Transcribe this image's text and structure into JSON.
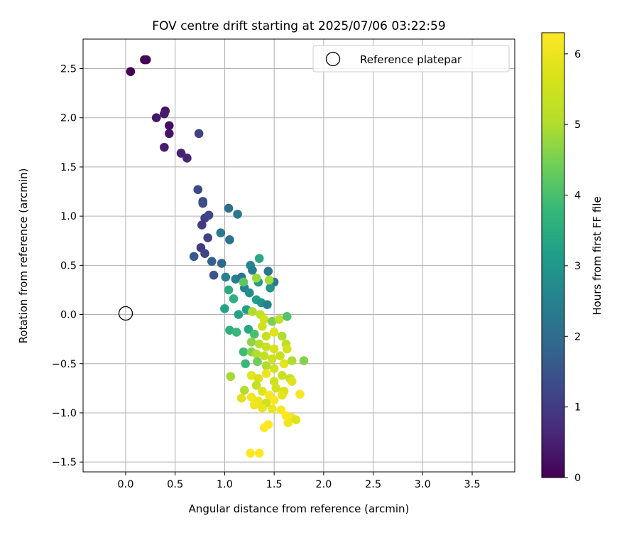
{
  "chart_data": {
    "type": "scatter",
    "title": "FOV centre drift starting at 2025/07/06 03:22:59",
    "xlabel": "Angular distance from reference (arcmin)",
    "ylabel": "Rotation from reference (arcmin)",
    "xlim": [
      -0.43,
      3.93
    ],
    "ylim": [
      -1.6,
      2.8
    ],
    "xticks": [
      0.0,
      0.5,
      1.0,
      1.5,
      2.0,
      2.5,
      3.0,
      3.5
    ],
    "yticks": [
      -1.5,
      -1.0,
      -0.5,
      0.0,
      0.5,
      1.0,
      1.5,
      2.0,
      2.5
    ],
    "xtick_labels": [
      "0.0",
      "0.5",
      "1.0",
      "1.5",
      "2.0",
      "2.5",
      "3.0",
      "3.5"
    ],
    "ytick_labels": [
      "−1.5",
      "−1.0",
      "−0.5",
      "0.0",
      "0.5",
      "1.0",
      "1.5",
      "2.0",
      "2.5"
    ],
    "grid": true,
    "legend": {
      "position": "top-right",
      "entries": [
        "Reference platepar"
      ]
    },
    "reference_point": {
      "x": 0.0,
      "y": 0.0,
      "label": "Reference platepar"
    },
    "colorbar": {
      "label": "Hours from first FF file",
      "colormap": "viridis",
      "range": [
        0,
        6.3
      ],
      "ticks": [
        0,
        1,
        2,
        3,
        4,
        5,
        6
      ],
      "tick_labels": [
        "0",
        "1",
        "2",
        "3",
        "4",
        "5",
        "6"
      ]
    },
    "points": [
      {
        "x": 0.05,
        "y": 2.47,
        "c": 0.0
      },
      {
        "x": 0.19,
        "y": 2.59,
        "c": 0.05
      },
      {
        "x": 0.21,
        "y": 2.59,
        "c": 0.08
      },
      {
        "x": 0.31,
        "y": 2.0,
        "c": 0.35
      },
      {
        "x": 0.4,
        "y": 2.07,
        "c": 0.3
      },
      {
        "x": 0.39,
        "y": 2.04,
        "c": 0.4
      },
      {
        "x": 0.44,
        "y": 1.92,
        "c": 0.2
      },
      {
        "x": 0.44,
        "y": 1.84,
        "c": 0.3
      },
      {
        "x": 0.39,
        "y": 1.7,
        "c": 0.45
      },
      {
        "x": 0.56,
        "y": 1.64,
        "c": 0.55
      },
      {
        "x": 0.62,
        "y": 1.59,
        "c": 0.6
      },
      {
        "x": 0.74,
        "y": 1.84,
        "c": 1.1
      },
      {
        "x": 0.73,
        "y": 1.27,
        "c": 1.25
      },
      {
        "x": 0.78,
        "y": 1.15,
        "c": 1.3
      },
      {
        "x": 0.78,
        "y": 1.13,
        "c": 1.35
      },
      {
        "x": 0.8,
        "y": 0.98,
        "c": 1.1
      },
      {
        "x": 0.84,
        "y": 1.01,
        "c": 1.2
      },
      {
        "x": 0.77,
        "y": 0.91,
        "c": 1.0
      },
      {
        "x": 0.83,
        "y": 0.78,
        "c": 1.1
      },
      {
        "x": 0.76,
        "y": 0.68,
        "c": 0.95
      },
      {
        "x": 0.8,
        "y": 0.62,
        "c": 1.2
      },
      {
        "x": 0.69,
        "y": 0.59,
        "c": 1.6
      },
      {
        "x": 0.87,
        "y": 0.54,
        "c": 1.7
      },
      {
        "x": 0.97,
        "y": 0.52,
        "c": 1.9
      },
      {
        "x": 0.89,
        "y": 0.4,
        "c": 1.5
      },
      {
        "x": 1.04,
        "y": 1.08,
        "c": 2.0
      },
      {
        "x": 1.13,
        "y": 1.02,
        "c": 2.2
      },
      {
        "x": 0.96,
        "y": 0.83,
        "c": 2.3
      },
      {
        "x": 1.05,
        "y": 0.76,
        "c": 2.1
      },
      {
        "x": 1.01,
        "y": 0.38,
        "c": 2.5
      },
      {
        "x": 1.11,
        "y": 0.36,
        "c": 2.5
      },
      {
        "x": 1.17,
        "y": 0.38,
        "c": 2.2
      },
      {
        "x": 1.26,
        "y": 0.5,
        "c": 2.6
      },
      {
        "x": 1.28,
        "y": 0.45,
        "c": 2.4
      },
      {
        "x": 1.35,
        "y": 0.57,
        "c": 3.4
      },
      {
        "x": 1.44,
        "y": 0.44,
        "c": 2.2
      },
      {
        "x": 1.5,
        "y": 0.33,
        "c": 2.3
      },
      {
        "x": 1.2,
        "y": 0.27,
        "c": 2.5
      },
      {
        "x": 1.25,
        "y": 0.22,
        "c": 2.8
      },
      {
        "x": 1.32,
        "y": 0.15,
        "c": 3.2
      },
      {
        "x": 1.37,
        "y": 0.12,
        "c": 2.9
      },
      {
        "x": 1.43,
        "y": 0.1,
        "c": 2.5
      },
      {
        "x": 1.46,
        "y": 0.27,
        "c": 3.0
      },
      {
        "x": 1.34,
        "y": 0.33,
        "c": 3.1
      },
      {
        "x": 1.04,
        "y": 0.25,
        "c": 3.5
      },
      {
        "x": 1.09,
        "y": 0.16,
        "c": 3.6
      },
      {
        "x": 1.0,
        "y": 0.06,
        "c": 3.3
      },
      {
        "x": 1.14,
        "y": 0.0,
        "c": 3.3
      },
      {
        "x": 1.19,
        "y": 0.33,
        "c": 4.2
      },
      {
        "x": 1.22,
        "y": 0.05,
        "c": 3.2
      },
      {
        "x": 1.32,
        "y": 0.37,
        "c": 4.8
      },
      {
        "x": 1.45,
        "y": 0.35,
        "c": 4.9
      },
      {
        "x": 1.28,
        "y": 0.03,
        "c": 5.0
      },
      {
        "x": 1.36,
        "y": 0.0,
        "c": 5.3
      },
      {
        "x": 1.4,
        "y": -0.05,
        "c": 5.6
      },
      {
        "x": 1.48,
        "y": -0.07,
        "c": 4.5
      },
      {
        "x": 1.55,
        "y": -0.05,
        "c": 5.2
      },
      {
        "x": 1.63,
        "y": -0.02,
        "c": 4.1
      },
      {
        "x": 1.05,
        "y": -0.16,
        "c": 3.6
      },
      {
        "x": 1.12,
        "y": -0.18,
        "c": 3.8
      },
      {
        "x": 1.24,
        "y": -0.15,
        "c": 3.4
      },
      {
        "x": 1.3,
        "y": -0.2,
        "c": 4.0
      },
      {
        "x": 1.38,
        "y": -0.12,
        "c": 5.5
      },
      {
        "x": 1.42,
        "y": -0.22,
        "c": 5.4
      },
      {
        "x": 1.5,
        "y": -0.18,
        "c": 5.8
      },
      {
        "x": 1.58,
        "y": -0.22,
        "c": 5.0
      },
      {
        "x": 1.27,
        "y": -0.28,
        "c": 4.7
      },
      {
        "x": 1.35,
        "y": -0.3,
        "c": 5.1
      },
      {
        "x": 1.42,
        "y": -0.33,
        "c": 5.4
      },
      {
        "x": 1.5,
        "y": -0.35,
        "c": 5.7
      },
      {
        "x": 1.62,
        "y": -0.3,
        "c": 5.2
      },
      {
        "x": 1.63,
        "y": -0.35,
        "c": 5.6
      },
      {
        "x": 1.19,
        "y": -0.38,
        "c": 3.9
      },
      {
        "x": 1.27,
        "y": -0.38,
        "c": 4.6
      },
      {
        "x": 1.32,
        "y": -0.4,
        "c": 5.0
      },
      {
        "x": 1.4,
        "y": -0.42,
        "c": 5.3
      },
      {
        "x": 1.48,
        "y": -0.45,
        "c": 5.5
      },
      {
        "x": 1.56,
        "y": -0.42,
        "c": 5.4
      },
      {
        "x": 1.21,
        "y": -0.5,
        "c": 3.8
      },
      {
        "x": 1.33,
        "y": -0.48,
        "c": 4.4
      },
      {
        "x": 1.42,
        "y": -0.52,
        "c": 5.0
      },
      {
        "x": 1.5,
        "y": -0.55,
        "c": 5.6
      },
      {
        "x": 1.6,
        "y": -0.5,
        "c": 5.9
      },
      {
        "x": 1.68,
        "y": -0.47,
        "c": 5.0
      },
      {
        "x": 1.8,
        "y": -0.47,
        "c": 4.6
      },
      {
        "x": 1.06,
        "y": -0.63,
        "c": 4.9
      },
      {
        "x": 1.27,
        "y": -0.62,
        "c": 5.9
      },
      {
        "x": 1.34,
        "y": -0.65,
        "c": 5.7
      },
      {
        "x": 1.42,
        "y": -0.6,
        "c": 6.0
      },
      {
        "x": 1.5,
        "y": -0.68,
        "c": 5.5
      },
      {
        "x": 1.58,
        "y": -0.62,
        "c": 5.4
      },
      {
        "x": 1.66,
        "y": -0.65,
        "c": 5.3
      },
      {
        "x": 1.68,
        "y": -0.68,
        "c": 5.8
      },
      {
        "x": 1.2,
        "y": -0.77,
        "c": 5.0
      },
      {
        "x": 1.32,
        "y": -0.72,
        "c": 5.3
      },
      {
        "x": 1.38,
        "y": -0.78,
        "c": 5.8
      },
      {
        "x": 1.45,
        "y": -0.82,
        "c": 6.2
      },
      {
        "x": 1.52,
        "y": -0.75,
        "c": 5.6
      },
      {
        "x": 1.6,
        "y": -0.78,
        "c": 5.7
      },
      {
        "x": 1.17,
        "y": -0.85,
        "c": 5.8
      },
      {
        "x": 1.27,
        "y": -0.84,
        "c": 6.1
      },
      {
        "x": 1.34,
        "y": -0.88,
        "c": 6.0
      },
      {
        "x": 1.42,
        "y": -0.9,
        "c": 5.5
      },
      {
        "x": 1.5,
        "y": -0.87,
        "c": 6.2
      },
      {
        "x": 1.58,
        "y": -0.82,
        "c": 5.9
      },
      {
        "x": 1.76,
        "y": -0.81,
        "c": 6.2
      },
      {
        "x": 1.3,
        "y": -0.92,
        "c": 6.1
      },
      {
        "x": 1.38,
        "y": -0.95,
        "c": 5.9
      },
      {
        "x": 1.48,
        "y": -0.96,
        "c": 6.0
      },
      {
        "x": 1.57,
        "y": -0.97,
        "c": 6.2
      },
      {
        "x": 1.62,
        "y": -1.03,
        "c": 6.3
      },
      {
        "x": 1.68,
        "y": -1.05,
        "c": 6.2
      },
      {
        "x": 1.72,
        "y": -1.07,
        "c": 5.8
      },
      {
        "x": 1.64,
        "y": -1.1,
        "c": 6.1
      },
      {
        "x": 1.44,
        "y": -1.12,
        "c": 6.3
      },
      {
        "x": 1.4,
        "y": -1.15,
        "c": 6.3
      },
      {
        "x": 1.26,
        "y": -1.41,
        "c": 6.3
      },
      {
        "x": 1.35,
        "y": -1.41,
        "c": 6.3
      }
    ]
  }
}
